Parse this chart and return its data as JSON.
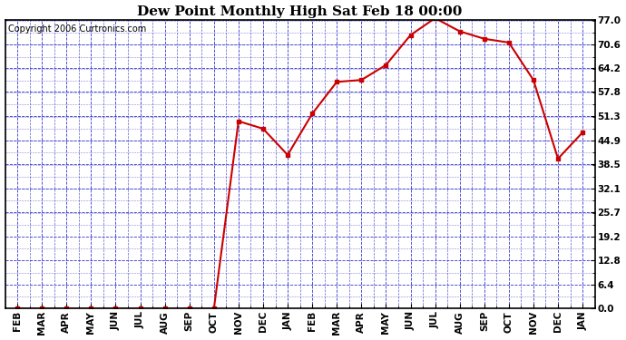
{
  "title": "Dew Point Monthly High Sat Feb 18 00:00",
  "copyright": "Copyright 2006 Curtronics.com",
  "x_labels": [
    "FEB",
    "MAR",
    "APR",
    "MAY",
    "JUN",
    "JUL",
    "AUG",
    "SEP",
    "OCT",
    "NOV",
    "DEC",
    "JAN",
    "FEB",
    "MAR",
    "APR",
    "MAY",
    "JUN",
    "JUL",
    "AUG",
    "SEP",
    "OCT",
    "NOV",
    "DEC",
    "JAN"
  ],
  "y_values": [
    0.0,
    0.0,
    0.0,
    0.0,
    0.0,
    0.0,
    0.0,
    0.0,
    0.0,
    50.0,
    48.0,
    41.0,
    52.0,
    60.5,
    61.0,
    65.0,
    73.0,
    77.5,
    74.0,
    72.0,
    71.0,
    61.0,
    40.0,
    47.0
  ],
  "line_color": "#cc0000",
  "marker_color": "#cc0000",
  "bg_color": "#ffffff",
  "plot_bg_color": "#ffffff",
  "border_color": "#000000",
  "grid_color": "#3333cc",
  "title_fontsize": 11,
  "copyright_fontsize": 7,
  "tick_label_fontsize": 7.5,
  "ytick_values": [
    0.0,
    6.4,
    12.8,
    19.2,
    25.7,
    32.1,
    38.5,
    44.9,
    51.3,
    57.8,
    64.2,
    70.6,
    77.0
  ],
  "ymin": 0.0,
  "ymax": 77.0
}
